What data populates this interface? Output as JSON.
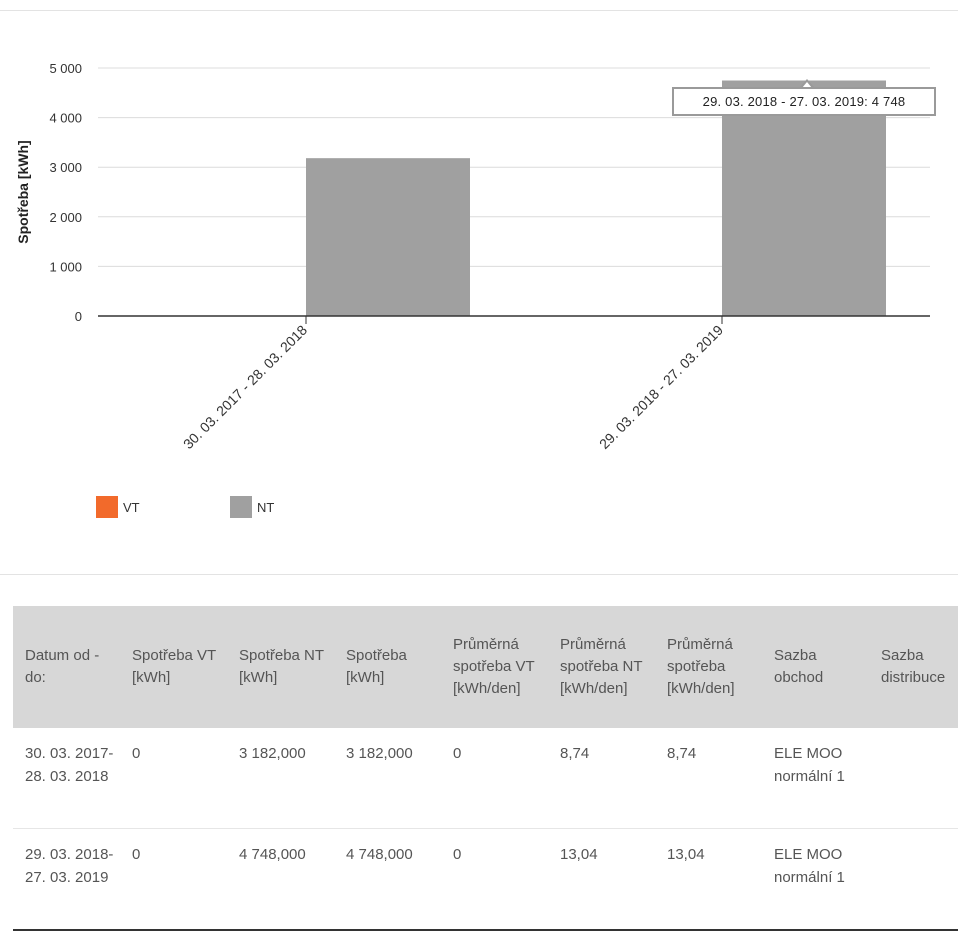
{
  "chart_data": {
    "type": "bar",
    "categories": [
      "30. 03. 2017 - 28. 03. 2018",
      "29. 03. 2018 - 27. 03. 2019"
    ],
    "series": [
      {
        "name": "VT",
        "values": [
          0,
          0
        ],
        "color": "#f26a2b"
      },
      {
        "name": "NT",
        "values": [
          3182,
          4748
        ],
        "color": "#a0a0a0"
      }
    ],
    "title": "",
    "xlabel": "",
    "ylabel": "Spotřeba [kWh]",
    "ylim": [
      0,
      5000
    ],
    "y_ticks": [
      0,
      1000,
      2000,
      3000,
      4000,
      5000
    ],
    "y_tick_labels": [
      "0",
      "1 000",
      "2 000",
      "3 000",
      "4 000",
      "5 000"
    ],
    "grid": true,
    "legend": "bottom-left",
    "tooltip": {
      "text": "29. 03. 2018 - 27. 03. 2019: 4 748"
    }
  },
  "table": {
    "headers": [
      "Datum od - do:",
      "Spotřeba VT [kWh]",
      "Spotřeba NT [kWh]",
      "Spotřeba [kWh]",
      "Průměrná spotřeba VT [kWh/den]",
      "Průměrná spotřeba NT [kWh/den]",
      "Průměrná spotřeba [kWh/den]",
      "Sazba obchod",
      "Sazba distribuce"
    ],
    "rows": [
      [
        "30. 03. 2017- 28. 03. 2018",
        "0",
        "3 182,000",
        "3 182,000",
        "0",
        "8,74",
        "8,74",
        "ELE MOO normální 1",
        ""
      ],
      [
        "29. 03. 2018- 27. 03. 2019",
        "0",
        "4 748,000",
        "4 748,000",
        "0",
        "13,04",
        "13,04",
        "ELE MOO normální 1",
        ""
      ]
    ]
  }
}
